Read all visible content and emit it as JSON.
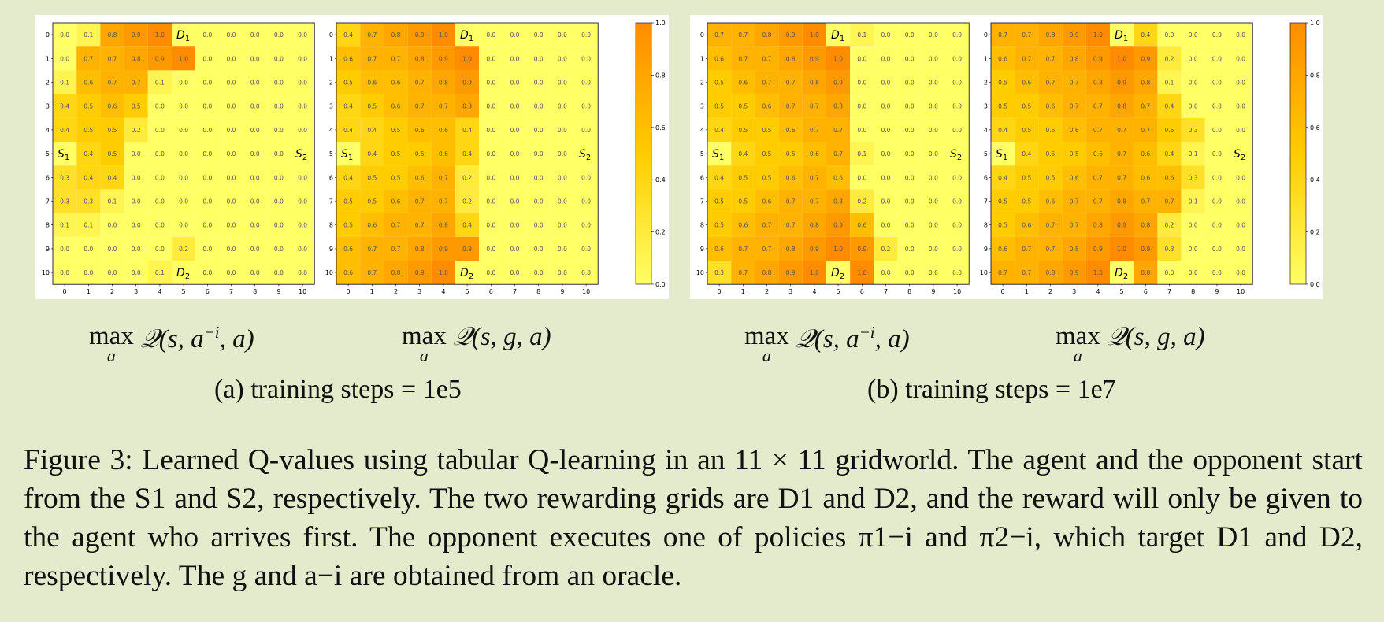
{
  "figure": {
    "panels": [
      {
        "id": "a",
        "label": "(a) training steps = 1e5",
        "heatmaps": [
          {
            "id": "a_left",
            "caption": "max_a Q(s, a^{-i}, a)",
            "values": [
              [
                0.0,
                0.1,
                0.8,
                0.9,
                1.0,
                null,
                0.0,
                0.0,
                0.0,
                0.0,
                0.0
              ],
              [
                0.0,
                0.7,
                0.7,
                0.8,
                0.9,
                1.0,
                0.0,
                0.0,
                0.0,
                0.0,
                0.0
              ],
              [
                0.1,
                0.6,
                0.7,
                0.7,
                0.1,
                0.0,
                0.0,
                0.0,
                0.0,
                0.0,
                0.0
              ],
              [
                0.4,
                0.5,
                0.6,
                0.5,
                0.0,
                0.0,
                0.0,
                0.0,
                0.0,
                0.0,
                0.0
              ],
              [
                0.4,
                0.5,
                0.5,
                0.2,
                0.0,
                0.0,
                0.0,
                0.0,
                0.0,
                0.0,
                0.0
              ],
              [
                null,
                0.4,
                0.5,
                0.0,
                0.0,
                0.0,
                0.0,
                0.0,
                0.0,
                0.0,
                null
              ],
              [
                0.3,
                0.4,
                0.4,
                0.0,
                0.0,
                0.0,
                0.0,
                0.0,
                0.0,
                0.0,
                0.0
              ],
              [
                0.3,
                0.3,
                0.1,
                0.0,
                0.0,
                0.0,
                0.0,
                0.0,
                0.0,
                0.0,
                0.0
              ],
              [
                0.1,
                0.1,
                0.0,
                0.0,
                0.0,
                0.0,
                0.0,
                0.0,
                0.0,
                0.0,
                0.0
              ],
              [
                0.0,
                0.0,
                0.0,
                0.0,
                0.0,
                0.2,
                0.0,
                0.0,
                0.0,
                0.0,
                0.0
              ],
              [
                0.0,
                0.0,
                0.0,
                0.0,
                0.1,
                null,
                0.0,
                0.0,
                0.0,
                0.0,
                0.0
              ]
            ]
          },
          {
            "id": "a_right",
            "caption": "max_a Q(s, g, a)",
            "values": [
              [
                0.4,
                0.7,
                0.8,
                0.9,
                1.0,
                null,
                0.0,
                0.0,
                0.0,
                0.0,
                0.0
              ],
              [
                0.6,
                0.7,
                0.7,
                0.8,
                0.9,
                1.0,
                0.0,
                0.0,
                0.0,
                0.0,
                0.0
              ],
              [
                0.5,
                0.6,
                0.6,
                0.7,
                0.8,
                0.9,
                0.0,
                0.0,
                0.0,
                0.0,
                0.0
              ],
              [
                0.4,
                0.5,
                0.6,
                0.7,
                0.7,
                0.8,
                0.0,
                0.0,
                0.0,
                0.0,
                0.0
              ],
              [
                0.4,
                0.4,
                0.5,
                0.6,
                0.6,
                0.4,
                0.0,
                0.0,
                0.0,
                0.0,
                0.0
              ],
              [
                null,
                0.4,
                0.5,
                0.5,
                0.6,
                0.4,
                0.0,
                0.0,
                0.0,
                0.0,
                null
              ],
              [
                0.4,
                0.5,
                0.5,
                0.6,
                0.7,
                0.2,
                0.0,
                0.0,
                0.0,
                0.0,
                0.0
              ],
              [
                0.5,
                0.5,
                0.6,
                0.7,
                0.7,
                0.2,
                0.0,
                0.0,
                0.0,
                0.0,
                0.0
              ],
              [
                0.5,
                0.6,
                0.7,
                0.7,
                0.8,
                0.4,
                0.0,
                0.0,
                0.0,
                0.0,
                0.0
              ],
              [
                0.6,
                0.7,
                0.7,
                0.8,
                0.9,
                0.9,
                0.0,
                0.0,
                0.0,
                0.0,
                0.0
              ],
              [
                0.6,
                0.7,
                0.8,
                0.9,
                1.0,
                null,
                0.0,
                0.0,
                0.0,
                0.0,
                0.0
              ]
            ]
          }
        ]
      },
      {
        "id": "b",
        "label": "(b) training steps = 1e7",
        "heatmaps": [
          {
            "id": "b_left",
            "caption": "max_a Q(s, a^{-i}, a)",
            "values": [
              [
                0.7,
                0.7,
                0.8,
                0.9,
                1.0,
                null,
                0.1,
                0.0,
                0.0,
                0.0,
                0.0
              ],
              [
                0.6,
                0.7,
                0.7,
                0.8,
                0.9,
                1.0,
                0.0,
                0.0,
                0.0,
                0.0,
                0.0
              ],
              [
                0.5,
                0.6,
                0.7,
                0.7,
                0.8,
                0.9,
                0.0,
                0.0,
                0.0,
                0.0,
                0.0
              ],
              [
                0.5,
                0.5,
                0.6,
                0.7,
                0.7,
                0.8,
                0.0,
                0.0,
                0.0,
                0.0,
                0.0
              ],
              [
                0.4,
                0.5,
                0.5,
                0.6,
                0.7,
                0.7,
                0.0,
                0.0,
                0.0,
                0.0,
                0.0
              ],
              [
                null,
                0.4,
                0.5,
                0.5,
                0.6,
                0.7,
                0.1,
                0.0,
                0.0,
                0.0,
                null
              ],
              [
                0.4,
                0.5,
                0.5,
                0.6,
                0.7,
                0.6,
                0.0,
                0.0,
                0.0,
                0.0,
                0.0
              ],
              [
                0.5,
                0.5,
                0.6,
                0.7,
                0.7,
                0.8,
                0.2,
                0.0,
                0.0,
                0.0,
                0.0
              ],
              [
                0.5,
                0.6,
                0.7,
                0.7,
                0.8,
                0.9,
                0.6,
                0.0,
                0.0,
                0.0,
                0.0
              ],
              [
                0.6,
                0.7,
                0.7,
                0.8,
                0.9,
                1.0,
                0.9,
                0.2,
                0.0,
                0.0,
                0.0
              ],
              [
                0.3,
                0.7,
                0.8,
                0.9,
                1.0,
                null,
                1.0,
                0.0,
                0.0,
                0.0,
                0.0
              ]
            ]
          },
          {
            "id": "b_right",
            "caption": "max_a Q(s, g, a)",
            "values": [
              [
                0.7,
                0.7,
                0.8,
                0.9,
                1.0,
                null,
                0.4,
                0.0,
                0.0,
                0.0,
                0.0
              ],
              [
                0.6,
                0.7,
                0.7,
                0.8,
                0.9,
                1.0,
                0.9,
                0.2,
                0.0,
                0.0,
                0.0
              ],
              [
                0.5,
                0.6,
                0.7,
                0.7,
                0.8,
                0.9,
                0.8,
                0.1,
                0.0,
                0.0,
                0.0
              ],
              [
                0.5,
                0.5,
                0.6,
                0.7,
                0.7,
                0.8,
                0.7,
                0.4,
                0.0,
                0.0,
                0.0
              ],
              [
                0.4,
                0.5,
                0.5,
                0.6,
                0.7,
                0.7,
                0.7,
                0.5,
                0.3,
                0.0,
                0.0
              ],
              [
                null,
                0.4,
                0.5,
                0.5,
                0.6,
                0.7,
                0.6,
                0.4,
                0.1,
                0.0,
                null
              ],
              [
                0.4,
                0.5,
                0.5,
                0.6,
                0.7,
                0.7,
                0.6,
                0.6,
                0.3,
                0.0,
                0.0
              ],
              [
                0.5,
                0.5,
                0.6,
                0.7,
                0.7,
                0.8,
                0.7,
                0.7,
                0.1,
                0.0,
                0.0
              ],
              [
                0.5,
                0.6,
                0.7,
                0.7,
                0.8,
                0.9,
                0.8,
                0.2,
                0.0,
                0.0,
                0.0
              ],
              [
                0.6,
                0.7,
                0.7,
                0.8,
                0.9,
                1.0,
                0.9,
                0.3,
                0.0,
                0.0,
                0.0
              ],
              [
                0.7,
                0.7,
                0.8,
                0.9,
                1.0,
                null,
                0.8,
                0.0,
                0.0,
                0.0,
                0.0
              ]
            ]
          }
        ]
      }
    ],
    "special_cells": [
      {
        "label": "D1",
        "row": 0,
        "col": 5
      },
      {
        "label": "D2",
        "row": 10,
        "col": 5
      },
      {
        "label": "S1",
        "row": 5,
        "col": 0
      },
      {
        "label": "S2",
        "row": 5,
        "col": 10
      }
    ],
    "special_cell_values": {
      "D1": 0.0,
      "D2": 0.0,
      "S1": 0.0,
      "S2": 0.0
    },
    "tick_labels": [
      "0",
      "1",
      "2",
      "3",
      "4",
      "5",
      "6",
      "7",
      "8",
      "9",
      "10"
    ],
    "colorbar_ticks": [
      "0.0",
      "0.2",
      "0.4",
      "0.6",
      "0.8",
      "1.0"
    ],
    "colors": {
      "low": "#ffff66",
      "mid": "#ffcc00",
      "high": "#ff8c00",
      "background": "#e3ebcc",
      "panel": "#ffffff"
    }
  },
  "caption": {
    "prefix": "Figure 3:",
    "text": "Learned Q-values using tabular Q-learning in an 11 × 11 gridworld. The agent and the opponent start from the S1 and S2, respectively. The two rewarding grids are D1 and D2, and the reward will only be given to the agent who arrives first. The opponent executes one of policies π1−i and π2−i, which target D1 and D2, respectively. The g and a−i are obtained from an oracle."
  },
  "chart_data": [
    {
      "type": "heatmap",
      "title": "max_a Q(s, a^{-i}, a)",
      "panel": "(a) training steps = 1e5",
      "ref": "figure.panels.0.heatmaps.0.values",
      "colorbar_range": [
        0,
        1
      ]
    },
    {
      "type": "heatmap",
      "title": "max_a Q(s, g, a)",
      "panel": "(a) training steps = 1e5",
      "ref": "figure.panels.0.heatmaps.1.values",
      "colorbar_range": [
        0,
        1
      ]
    },
    {
      "type": "heatmap",
      "title": "max_a Q(s, a^{-i}, a)",
      "panel": "(b) training steps = 1e7",
      "ref": "figure.panels.1.heatmaps.0.values",
      "colorbar_range": [
        0,
        1
      ]
    },
    {
      "type": "heatmap",
      "title": "max_a Q(s, g, a)",
      "panel": "(b) training steps = 1e7",
      "ref": "figure.panels.1.heatmaps.1.values",
      "colorbar_range": [
        0,
        1
      ]
    }
  ]
}
